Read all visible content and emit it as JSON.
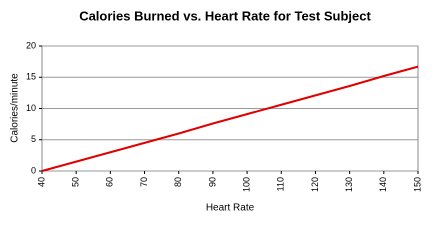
{
  "chart_data": {
    "type": "line",
    "title": "Calories Burned vs. Heart Rate for Test Subject",
    "x_label": "Heart Rate",
    "y_label": "Calories/minute",
    "x": [
      40,
      50,
      60,
      70,
      80,
      90,
      100,
      110,
      120,
      130,
      140,
      150
    ],
    "series": [
      {
        "name": "Calories/minute",
        "color": "#e00000",
        "values": [
          0,
          1.5,
          3.0,
          4.5,
          6.0,
          7.6,
          9.1,
          10.6,
          12.1,
          13.6,
          15.2,
          16.7
        ]
      }
    ],
    "xlim": [
      40,
      150
    ],
    "ylim": [
      0,
      20
    ],
    "xticks": [
      40,
      50,
      60,
      70,
      80,
      90,
      100,
      110,
      120,
      130,
      140,
      150
    ],
    "yticks": [
      0,
      5,
      10,
      15,
      20
    ],
    "grid": true
  }
}
